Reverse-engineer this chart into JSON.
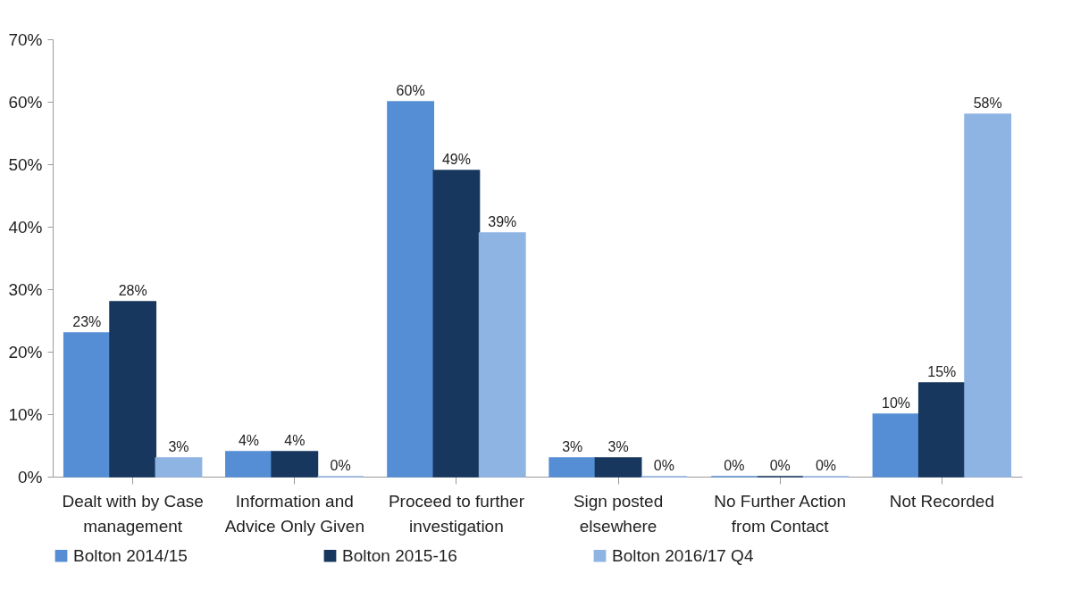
{
  "chart_data": {
    "type": "bar",
    "categories": [
      "Dealt with by Case management",
      "Information and Advice Only Given",
      "Proceed to further investigation",
      "Sign posted elsewhere",
      "No Further Action from Contact",
      "Not Recorded"
    ],
    "series": [
      {
        "name": "Bolton 2014/15",
        "color": "#558ed5",
        "values": [
          23,
          4,
          60,
          3,
          0,
          10
        ],
        "value_labels": [
          "23%",
          "4%",
          "60%",
          "3%",
          "0%",
          "10%"
        ]
      },
      {
        "name": "Bolton 2015-16",
        "color": "#17375e",
        "values": [
          28,
          4,
          49,
          3,
          0,
          15
        ],
        "value_labels": [
          "28%",
          "4%",
          "49%",
          "3%",
          "0%",
          "15%"
        ]
      },
      {
        "name": "Bolton 2016/17 Q4",
        "color": "#8eb4e3",
        "values": [
          3,
          0,
          39,
          0,
          0,
          58
        ],
        "value_labels": [
          "3%",
          "0%",
          "39%",
          "0%",
          "0%",
          "58%"
        ]
      }
    ],
    "ylim": [
      0,
      70
    ],
    "yticks": [
      {
        "value": 0,
        "label": "0%"
      },
      {
        "value": 10,
        "label": "10%"
      },
      {
        "value": 20,
        "label": "20%"
      },
      {
        "value": 30,
        "label": "30%"
      },
      {
        "value": 40,
        "label": "40%"
      },
      {
        "value": 50,
        "label": "50%"
      },
      {
        "value": 60,
        "label": "60%"
      },
      {
        "value": 70,
        "label": "70%"
      }
    ],
    "grid": false,
    "legend": "bottom"
  }
}
